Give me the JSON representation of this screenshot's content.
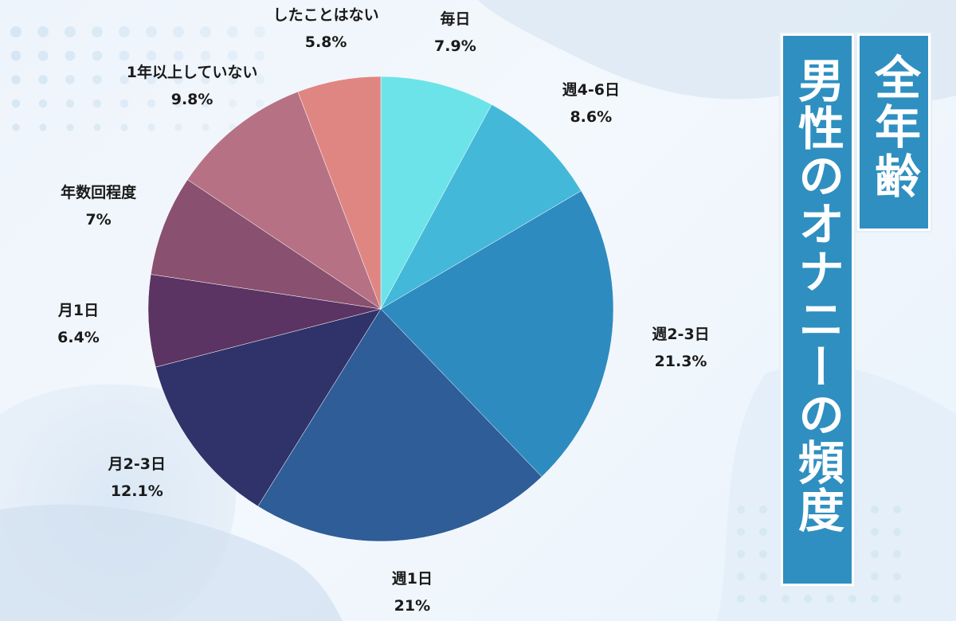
{
  "title": {
    "line1": "全年齢",
    "line2": "男性のオナニーの頻度"
  },
  "colors": {
    "background": "#eef4fb",
    "title_box": "#2f8fc0",
    "title_text": "#ffffff"
  },
  "chart_data": {
    "type": "pie",
    "title": "全年齢 男性のオナニーの頻度",
    "start_angle_deg": 0,
    "direction": "clockwise",
    "slices": [
      {
        "label": "毎日",
        "value": 7.9,
        "value_label": "7.9%",
        "color": "#6ce3e9"
      },
      {
        "label": "週4-6日",
        "value": 8.6,
        "value_label": "8.6%",
        "color": "#44b8d8"
      },
      {
        "label": "週2-3日",
        "value": 21.3,
        "value_label": "21.3%",
        "color": "#2e8bbf"
      },
      {
        "label": "週1日",
        "value": 21,
        "value_label": "21%",
        "color": "#2e5d98"
      },
      {
        "label": "月2-3日",
        "value": 12.1,
        "value_label": "12.1%",
        "color": "#30336a"
      },
      {
        "label": "月1日",
        "value": 6.4,
        "value_label": "6.4%",
        "color": "#5b3463"
      },
      {
        "label": "年数回程度",
        "value": 7,
        "value_label": "7%",
        "color": "#8a5070"
      },
      {
        "label": "1年以上していない",
        "value": 9.8,
        "value_label": "9.8%",
        "color": "#b67284"
      },
      {
        "label": "したことはない",
        "value": 5.8,
        "value_label": "5.8%",
        "color": "#e08682"
      }
    ]
  }
}
